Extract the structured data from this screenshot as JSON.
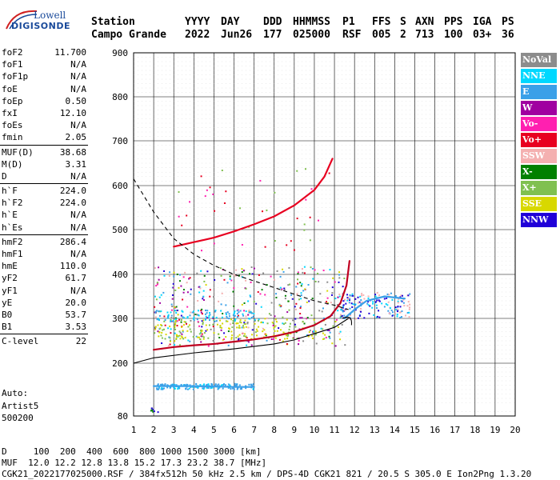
{
  "logo": {
    "line1": "Lowell",
    "line2": "DIGISONDE"
  },
  "header": {
    "labels": [
      "Station",
      "YYYY",
      "DAY",
      "DDD",
      "HHMMSS",
      "P1",
      "FFS",
      "S",
      "AXN",
      "PPS",
      "IGA",
      "PS"
    ],
    "values": [
      "Campo Grande",
      "2022",
      "Jun26",
      "177",
      "025000",
      "RSF",
      "005",
      "2",
      "713",
      "100",
      "03+",
      "36"
    ]
  },
  "params": {
    "group1": [
      {
        "k": "foF2",
        "v": "11.700"
      },
      {
        "k": "foF1",
        "v": "N/A"
      },
      {
        "k": "foF1p",
        "v": "N/A"
      },
      {
        "k": "foE",
        "v": "N/A"
      },
      {
        "k": "foEp",
        "v": "0.50"
      },
      {
        "k": "fxI",
        "v": "12.10"
      },
      {
        "k": "foEs",
        "v": "N/A"
      },
      {
        "k": "fmin",
        "v": "2.05"
      }
    ],
    "group2": [
      {
        "k": "MUF(D)",
        "v": "38.68"
      },
      {
        "k": "M(D)",
        "v": "3.31"
      },
      {
        "k": "D",
        "v": "N/A"
      }
    ],
    "group3": [
      {
        "k": "h`F",
        "v": "224.0"
      },
      {
        "k": "h`F2",
        "v": "224.0"
      },
      {
        "k": "h`E",
        "v": "N/A"
      },
      {
        "k": "h`Es",
        "v": "N/A"
      }
    ],
    "group4": [
      {
        "k": "hmF2",
        "v": "286.4"
      },
      {
        "k": "hmF1",
        "v": "N/A"
      },
      {
        "k": "hmE",
        "v": "110.0"
      },
      {
        "k": "yF2",
        "v": "61.7"
      },
      {
        "k": "yF1",
        "v": "N/A"
      },
      {
        "k": "yE",
        "v": "20.0"
      },
      {
        "k": "B0",
        "v": "53.7"
      },
      {
        "k": "B1",
        "v": "3.53"
      }
    ],
    "group5": [
      {
        "k": "C-level",
        "v": "22"
      }
    ],
    "extra": [
      "Auto:",
      "Artist5",
      "500200"
    ]
  },
  "legend": [
    {
      "label": "NoVal",
      "color": "#8c8c8c"
    },
    {
      "label": "NNE",
      "color": "#00d8ff"
    },
    {
      "label": "E",
      "color": "#3aa0e8"
    },
    {
      "label": "W",
      "color": "#a000a0"
    },
    {
      "label": "Vo-",
      "color": "#ff20b0"
    },
    {
      "label": "Vo+",
      "color": "#e80020"
    },
    {
      "label": "SSW",
      "color": "#f4b0b0"
    },
    {
      "label": "X-",
      "color": "#008000"
    },
    {
      "label": "X+",
      "color": "#80c050"
    },
    {
      "label": "SSE",
      "color": "#d8d800"
    },
    {
      "label": "NNW",
      "color": "#2000d8"
    }
  ],
  "footer": {
    "line1": "D     100  200  400  600  800 1000 1500 3000 [km]",
    "line2": "MUF  12.0 12.2 12.8 13.8 15.2 17.3 23.2 38.7 [MHz]",
    "line3": "CGK21_2022177025000.RSF / 384fx512h 50 kHz 2.5 km / DPS-4D CGK21 821 / 20.5 S 305.0 E Ion2Png 1.3.20"
  },
  "chart_data": {
    "type": "scatter",
    "title": "",
    "xlabel": "",
    "ylabel": "",
    "xlim": [
      1,
      20
    ],
    "ylim": [
      80,
      900
    ],
    "x_ticks": [
      1,
      2,
      3,
      4,
      5,
      6,
      7,
      8,
      9,
      10,
      11,
      12,
      13,
      14,
      15,
      16,
      17,
      18,
      19,
      20
    ],
    "y_ticks": [
      80,
      200,
      300,
      400,
      500,
      600,
      700,
      800,
      900
    ],
    "grid": true,
    "traces": [
      {
        "name": "O-trace",
        "points": [
          [
            2.0,
            230
          ],
          [
            3,
            236
          ],
          [
            4,
            240
          ],
          [
            5,
            243
          ],
          [
            6,
            248
          ],
          [
            7,
            253
          ],
          [
            8,
            260
          ],
          [
            9,
            270
          ],
          [
            10,
            285
          ],
          [
            10.8,
            305
          ],
          [
            11.3,
            335
          ],
          [
            11.6,
            375
          ],
          [
            11.75,
            430
          ]
        ]
      },
      {
        "name": "F2 second hop",
        "points": [
          [
            3.0,
            462
          ],
          [
            4,
            472
          ],
          [
            5,
            482
          ],
          [
            6,
            496
          ],
          [
            7,
            512
          ],
          [
            8,
            530
          ],
          [
            9,
            555
          ],
          [
            10,
            590
          ],
          [
            10.5,
            620
          ],
          [
            10.9,
            660
          ]
        ]
      },
      {
        "name": "X-trace",
        "points": [
          [
            11.5,
            300
          ],
          [
            12,
            320
          ],
          [
            12.6,
            340
          ],
          [
            13.5,
            350
          ],
          [
            14.5,
            345
          ]
        ]
      },
      {
        "name": "Es layer",
        "points": [
          [
            2.0,
            148
          ],
          [
            3,
            148
          ],
          [
            4,
            148
          ],
          [
            5,
            147
          ],
          [
            6,
            146
          ],
          [
            7,
            146
          ]
        ]
      }
    ],
    "model_curves": [
      {
        "name": "profile",
        "points": [
          [
            1.0,
            200
          ],
          [
            2,
            212
          ],
          [
            4,
            223
          ],
          [
            6,
            232
          ],
          [
            8,
            243
          ],
          [
            9,
            252
          ],
          [
            10,
            266
          ],
          [
            11,
            280
          ],
          [
            11.7,
            300
          ]
        ]
      },
      {
        "name": "dashed",
        "points": [
          [
            1.0,
            615
          ],
          [
            2,
            540
          ],
          [
            3,
            480
          ],
          [
            4,
            445
          ],
          [
            5,
            420
          ],
          [
            6,
            400
          ],
          [
            7,
            385
          ],
          [
            8,
            370
          ],
          [
            9,
            355
          ],
          [
            10,
            340
          ],
          [
            11,
            330
          ],
          [
            11.7,
            320
          ]
        ]
      }
    ]
  }
}
